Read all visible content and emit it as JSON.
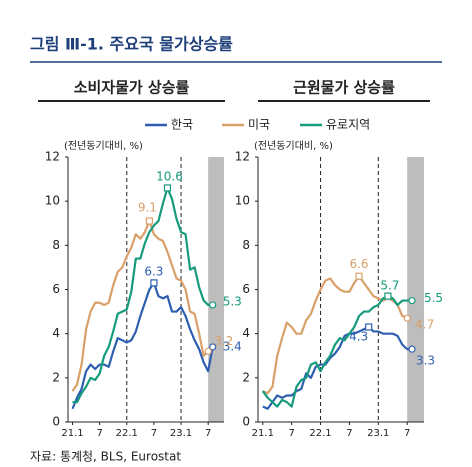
{
  "title": "그림 Ⅲ-1. 주요국 물가상승률",
  "source": "자료: 통계청, BLS, Eurostat",
  "chart_data": [
    {
      "type": "line",
      "title": "소비자물가 상승률",
      "ylabel": "(전년동기대비, %)",
      "x": [
        0,
        1,
        2,
        3,
        4,
        5,
        6,
        7,
        8,
        9,
        10,
        11,
        12,
        13,
        14,
        15,
        16,
        17,
        18,
        19,
        20,
        21,
        22,
        23,
        24,
        25,
        26,
        27,
        28,
        29,
        30,
        31
      ],
      "xlim": [
        -1,
        33.5
      ],
      "ylim": [
        0,
        12
      ],
      "yticks": [
        0,
        2,
        4,
        6,
        8,
        10,
        12
      ],
      "xticks": [
        {
          "value": 0,
          "label": "21.1"
        },
        {
          "value": 6,
          "label": "7"
        },
        {
          "value": 12,
          "label": "22.1"
        },
        {
          "value": 18,
          "label": "7"
        },
        {
          "value": 24,
          "label": "23.1"
        },
        {
          "value": 30,
          "label": "7"
        }
      ],
      "vlines": [
        12,
        24
      ],
      "shaded_range": [
        30,
        33.5
      ],
      "series": [
        {
          "name": "한국",
          "color": "#2e5fb0",
          "labeled_points": [
            18,
            31
          ],
          "values": [
            0.6,
            1.1,
            1.5,
            2.3,
            2.6,
            2.4,
            2.6,
            2.6,
            2.5,
            3.2,
            3.8,
            3.7,
            3.6,
            3.7,
            4.1,
            4.8,
            5.4,
            6.0,
            6.3,
            5.7,
            5.6,
            5.7,
            5.0,
            5.0,
            5.2,
            4.8,
            4.2,
            3.7,
            3.3,
            2.7,
            2.3,
            3.4
          ]
        },
        {
          "name": "미국",
          "color": "#d9a06a",
          "labeled_points": [
            17,
            30
          ],
          "values": [
            1.4,
            1.7,
            2.6,
            4.2,
            5.0,
            5.4,
            5.4,
            5.3,
            5.4,
            6.2,
            6.8,
            7.0,
            7.5,
            7.9,
            8.5,
            8.3,
            8.6,
            9.1,
            8.5,
            8.3,
            8.2,
            7.7,
            7.1,
            6.5,
            6.4,
            6.0,
            5.0,
            4.9,
            4.0,
            3.0,
            3.2,
            null
          ]
        },
        {
          "name": "유로지역",
          "color": "#169b7c",
          "labeled_points": [
            21,
            31
          ],
          "values": [
            0.9,
            0.9,
            1.3,
            1.6,
            2.0,
            1.9,
            2.2,
            3.0,
            3.4,
            4.1,
            4.9,
            5.0,
            5.1,
            5.9,
            7.4,
            7.4,
            8.1,
            8.6,
            8.9,
            9.1,
            9.9,
            10.6,
            10.1,
            9.2,
            8.6,
            8.5,
            6.9,
            7.0,
            6.1,
            5.5,
            5.3,
            5.3
          ]
        }
      ]
    },
    {
      "type": "line",
      "title": "근원물가 상승률",
      "ylabel": "(전년동기대비, %)",
      "x": [
        0,
        1,
        2,
        3,
        4,
        5,
        6,
        7,
        8,
        9,
        10,
        11,
        12,
        13,
        14,
        15,
        16,
        17,
        18,
        19,
        20,
        21,
        22,
        23,
        24,
        25,
        26,
        27,
        28,
        29,
        30,
        31
      ],
      "xlim": [
        -1,
        33.5
      ],
      "ylim": [
        0,
        12
      ],
      "yticks": [
        0,
        2,
        4,
        6,
        8,
        10,
        12
      ],
      "xticks": [
        {
          "value": 0,
          "label": "21.1"
        },
        {
          "value": 6,
          "label": "7"
        },
        {
          "value": 12,
          "label": "22.1"
        },
        {
          "value": 18,
          "label": "7"
        },
        {
          "value": 24,
          "label": "23.1"
        },
        {
          "value": 30,
          "label": "7"
        }
      ],
      "vlines": [
        12,
        24
      ],
      "shaded_range": [
        30,
        33.5
      ],
      "series": [
        {
          "name": "한국",
          "color": "#2e5fb0",
          "labeled_points": [
            22,
            31
          ],
          "values": [
            0.7,
            0.6,
            0.9,
            1.2,
            1.1,
            1.2,
            1.2,
            1.4,
            1.5,
            2.2,
            2.0,
            2.5,
            2.6,
            2.6,
            2.9,
            3.1,
            3.4,
            3.9,
            4.0,
            4.0,
            4.1,
            4.2,
            4.3,
            4.1,
            4.1,
            4.0,
            4.0,
            4.0,
            3.9,
            3.5,
            3.3,
            3.3
          ]
        },
        {
          "name": "미국",
          "color": "#d9a06a",
          "labeled_points": [
            20,
            30
          ],
          "values": [
            1.4,
            1.3,
            1.6,
            3.0,
            3.8,
            4.5,
            4.3,
            4.0,
            4.0,
            4.6,
            4.9,
            5.5,
            6.0,
            6.4,
            6.5,
            6.2,
            6.0,
            5.9,
            5.9,
            6.3,
            6.6,
            6.3,
            6.0,
            5.7,
            5.6,
            5.5,
            5.6,
            5.5,
            5.3,
            4.8,
            4.7,
            null
          ]
        },
        {
          "name": "유로지역",
          "color": "#169b7c",
          "labeled_points": [
            26,
            31
          ],
          "values": [
            1.4,
            1.1,
            0.9,
            0.7,
            1.0,
            0.9,
            0.7,
            1.6,
            1.9,
            2.0,
            2.6,
            2.7,
            2.3,
            2.7,
            3.0,
            3.5,
            3.8,
            3.7,
            4.0,
            4.3,
            4.8,
            5.0,
            5.0,
            5.2,
            5.3,
            5.6,
            5.7,
            5.6,
            5.3,
            5.5,
            5.5,
            5.5
          ]
        }
      ]
    }
  ]
}
